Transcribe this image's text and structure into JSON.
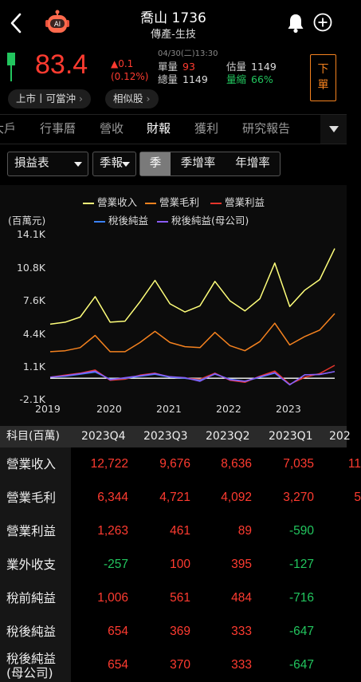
{
  "header": {
    "title": "喬山 1736",
    "subtitle": "傳產-生技",
    "icons": [
      "back-icon",
      "robot-ai-icon",
      "bell-icon",
      "add-circle-icon"
    ],
    "avatar_text": "AI"
  },
  "quote": {
    "price": "83.4",
    "change": "▲0.1",
    "change_pct": "(0.12%)",
    "datetime": "04/30(二)13:30",
    "volume_label": "單量",
    "volume_value": "93",
    "total_label": "總量",
    "total_value": "1149",
    "est_label": "估量",
    "est_value": "1149",
    "shrink_label": "量縮",
    "shrink_value": "66%",
    "order_button": "下單",
    "colors": {
      "up": "#ff3b30",
      "down": "#22c55e",
      "accent": "#f5821f"
    }
  },
  "pills": {
    "listing": "上市丨可當沖",
    "similar": "相似股"
  },
  "tabs": [
    {
      "label": "大戶",
      "active": false
    },
    {
      "label": "行事曆",
      "active": false
    },
    {
      "label": "營收",
      "active": false
    },
    {
      "label": "財報",
      "active": true
    },
    {
      "label": "獲利",
      "active": false
    },
    {
      "label": "研究報告",
      "active": false
    }
  ],
  "filters": {
    "statement": "損益表",
    "period": "季報",
    "segments": [
      {
        "label": "季",
        "active": true
      },
      {
        "label": "季增率",
        "active": false
      },
      {
        "label": "年增率",
        "active": false
      }
    ]
  },
  "chart_data": {
    "type": "line",
    "unit_label": "(百萬元)",
    "ylim": [
      -2100,
      14100
    ],
    "yticks": [
      "14.1K",
      "10.8K",
      "7.6K",
      "4.4K",
      "1.1K",
      "-2.1K"
    ],
    "ytick_values": [
      14100,
      10800,
      7600,
      4400,
      1100,
      -2100
    ],
    "xticks": [
      "2019",
      "2020",
      "2021",
      "2022",
      "2023"
    ],
    "x": [
      "2019Q1",
      "2019Q2",
      "2019Q3",
      "2019Q4",
      "2020Q1",
      "2020Q2",
      "2020Q3",
      "2020Q4",
      "2021Q1",
      "2021Q2",
      "2021Q3",
      "2021Q4",
      "2022Q1",
      "2022Q2",
      "2022Q3",
      "2022Q4",
      "2023Q1",
      "2023Q2",
      "2023Q3",
      "2023Q4"
    ],
    "series": [
      {
        "name": "營業收入",
        "color": "#ffff7a",
        "values": [
          5300,
          5500,
          6000,
          8000,
          5500,
          5600,
          7500,
          9600,
          7300,
          6500,
          7100,
          9500,
          7600,
          6600,
          7800,
          11300,
          7035,
          8636,
          9676,
          12722
        ]
      },
      {
        "name": "營業毛利",
        "color": "#f5821f",
        "values": [
          2600,
          2700,
          3000,
          4200,
          2600,
          2600,
          3500,
          4600,
          3500,
          3100,
          3000,
          4500,
          3200,
          2700,
          3600,
          5400,
          3270,
          4092,
          4721,
          6344
        ]
      },
      {
        "name": "營業利益",
        "color": "#e5352c",
        "values": [
          100,
          300,
          500,
          800,
          -200,
          -100,
          300,
          500,
          100,
          0,
          -100,
          500,
          -200,
          -400,
          200,
          700,
          -590,
          89,
          461,
          1263
        ]
      },
      {
        "name": "稅後純益",
        "color": "#3b82f6",
        "values": [
          100,
          200,
          400,
          600,
          -100,
          0,
          200,
          400,
          100,
          0,
          -200,
          400,
          -100,
          -300,
          100,
          500,
          -647,
          333,
          369,
          654
        ]
      },
      {
        "name": "稅後純益(母公司)",
        "color": "#8b5cf6",
        "values": [
          100,
          250,
          450,
          700,
          -150,
          50,
          250,
          450,
          150,
          50,
          -300,
          450,
          -150,
          -300,
          150,
          550,
          -647,
          333,
          370,
          654
        ]
      }
    ]
  },
  "table": {
    "header_label": "科目(百萬)",
    "columns": [
      "2023Q4",
      "2023Q3",
      "2023Q2",
      "2023Q1",
      "202"
    ],
    "rows": [
      {
        "label": "營業收入",
        "values": [
          "12,722",
          "9,676",
          "8,636",
          "7,035",
          "11"
        ],
        "colors": [
          "red",
          "red",
          "red",
          "red",
          "red"
        ]
      },
      {
        "label": "營業毛利",
        "values": [
          "6,344",
          "4,721",
          "4,092",
          "3,270",
          "5"
        ],
        "colors": [
          "red",
          "red",
          "red",
          "red",
          "red"
        ]
      },
      {
        "label": "營業利益",
        "values": [
          "1,263",
          "461",
          "89",
          "-590",
          ""
        ],
        "colors": [
          "red",
          "red",
          "red",
          "green",
          "red"
        ]
      },
      {
        "label": "業外收支",
        "values": [
          "-257",
          "100",
          "395",
          "-127",
          ""
        ],
        "colors": [
          "green",
          "red",
          "red",
          "green",
          "red"
        ]
      },
      {
        "label": "稅前純益",
        "values": [
          "1,006",
          "561",
          "484",
          "-716",
          ""
        ],
        "colors": [
          "red",
          "red",
          "red",
          "green",
          "red"
        ]
      },
      {
        "label": "稅後純益",
        "values": [
          "654",
          "369",
          "333",
          "-647",
          ""
        ],
        "colors": [
          "red",
          "red",
          "red",
          "green",
          "red"
        ]
      },
      {
        "label": "稅後純益\n(母公司)",
        "values": [
          "654",
          "370",
          "333",
          "-647",
          ""
        ],
        "colors": [
          "red",
          "red",
          "red",
          "green",
          "red"
        ]
      }
    ]
  }
}
